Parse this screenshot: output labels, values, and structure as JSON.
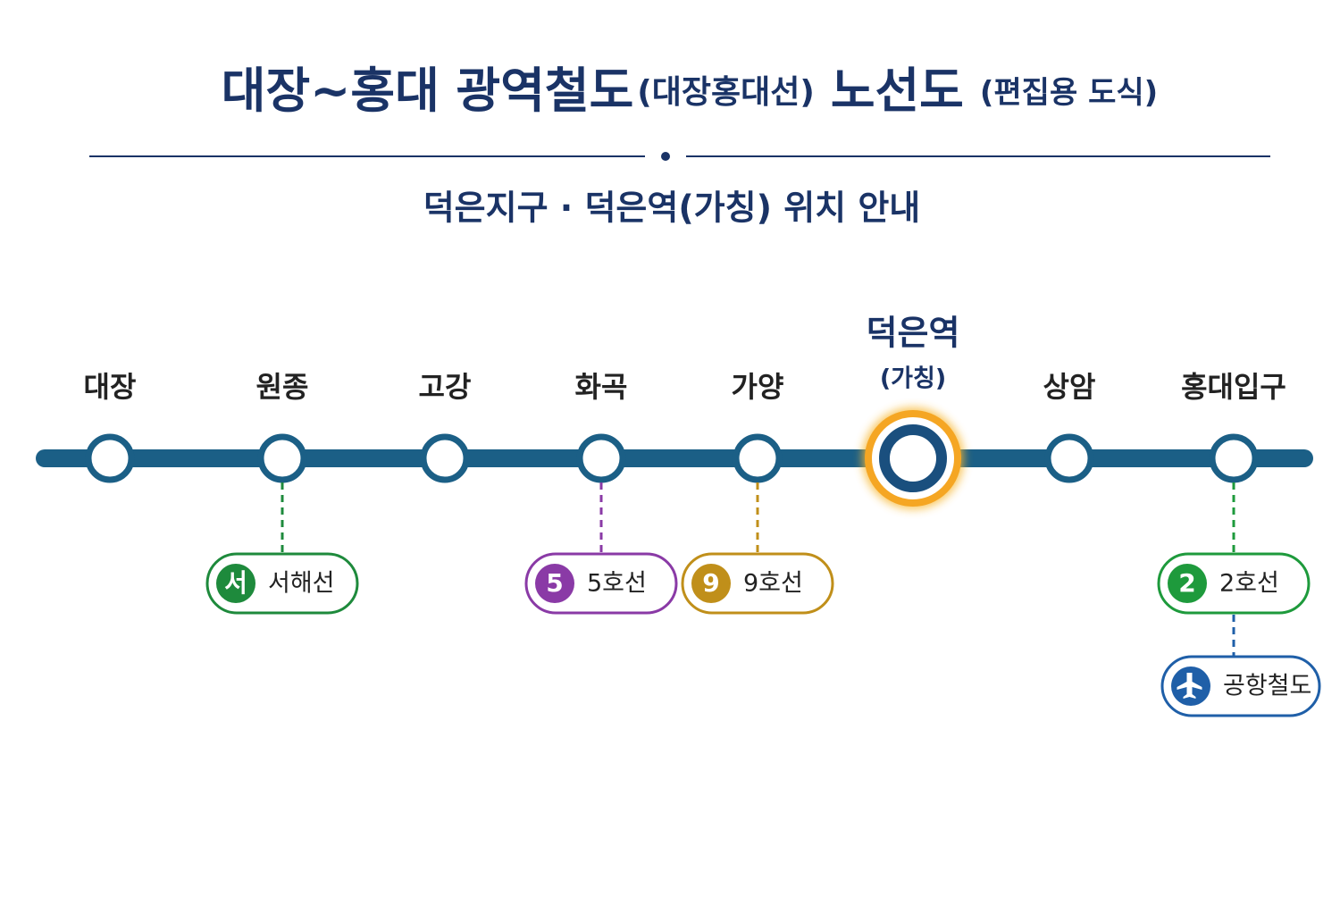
{
  "title": {
    "parts": [
      "대장~홍대 광역철도",
      "(대장홍대선)",
      "노선도",
      "(편집용 도식)"
    ]
  },
  "subtitle": "덕은지구 · 덕은역(가칭) 위치 안내",
  "line_color": "#1b5f86",
  "stations": [
    {
      "name": "대장"
    },
    {
      "name": "원종"
    },
    {
      "name": "고강"
    },
    {
      "name": "화곡"
    },
    {
      "name": "가양"
    },
    {
      "name": "덕은역",
      "note": "(가칭)",
      "highlight": true
    },
    {
      "name": "상암"
    },
    {
      "name": "홍대입구"
    }
  ],
  "transfers": [
    {
      "station": 1,
      "badge": "서",
      "label": "서해선",
      "color": "#1e8a3c"
    },
    {
      "station": 3,
      "badge": "5",
      "label": "5호선",
      "color": "#8a3aa6"
    },
    {
      "station": 4,
      "badge": "9",
      "label": "9호선",
      "color": "#c08f1a"
    },
    {
      "station": 7,
      "badge": "2",
      "label": "2호선",
      "color": "#1e9a3c"
    },
    {
      "station": 7,
      "icon": "plane",
      "label": "공항철도",
      "color": "#1f5fa8"
    }
  ]
}
